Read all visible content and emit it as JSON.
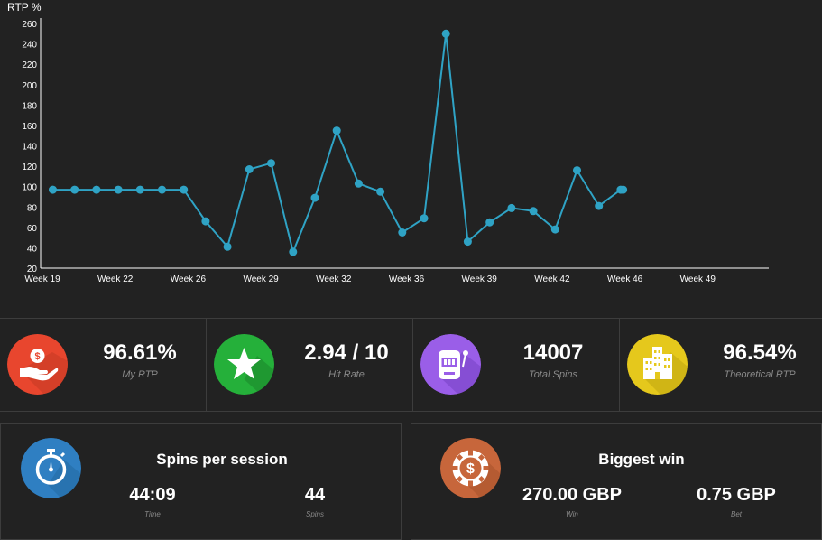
{
  "chart_data": {
    "type": "line",
    "ylabel": "RTP %",
    "ylim": [
      20,
      260
    ],
    "yticks": [
      20,
      40,
      60,
      80,
      100,
      120,
      140,
      160,
      180,
      200,
      220,
      240,
      260
    ],
    "xlim": [
      19,
      49
    ],
    "xticks": [
      {
        "value": 19,
        "label": "Week 19"
      },
      {
        "value": 22,
        "label": "Week 22"
      },
      {
        "value": 25,
        "label": "Week 26"
      },
      {
        "value": 28,
        "label": "Week 29"
      },
      {
        "value": 31,
        "label": "Week 32"
      },
      {
        "value": 34,
        "label": "Week 36"
      },
      {
        "value": 37,
        "label": "Week 39"
      },
      {
        "value": 40,
        "label": "Week 42"
      },
      {
        "value": 43,
        "label": "Week 46"
      },
      {
        "value": 46,
        "label": "Week 49"
      }
    ],
    "color": "#2fa3c5",
    "grid": false,
    "series": [
      {
        "x": [
          19.5,
          20.4,
          21.3,
          22.2,
          23.1,
          24.0,
          24.9,
          25.8,
          26.7,
          27.6,
          28.5,
          29.4,
          30.3,
          31.2,
          32.1,
          33.0,
          33.9,
          34.8,
          35.7,
          36.6,
          37.5,
          38.4,
          39.3,
          40.2,
          41.1,
          42.0,
          42.9,
          43.0
        ],
        "y": [
          97,
          97,
          97,
          97,
          97,
          97,
          97,
          66,
          41,
          117,
          123,
          36,
          89,
          155,
          103,
          95,
          55,
          69,
          250,
          46,
          65,
          79,
          76,
          58,
          116,
          81,
          97,
          97
        ]
      }
    ]
  },
  "stats": [
    {
      "value": "96.61%",
      "label": "My RTP",
      "icon": "hand-money-icon",
      "color": "#e8462e"
    },
    {
      "value": "2.94 / 10",
      "label": "Hit Rate",
      "icon": "star-icon",
      "color": "#25b03a"
    },
    {
      "value": "14007",
      "label": "Total Spins",
      "icon": "slot-machine-icon",
      "color": "#9a5ee8"
    },
    {
      "value": "96.54%",
      "label": "Theoretical RTP",
      "icon": "building-icon",
      "color": "#e5c81c"
    }
  ],
  "sessions": {
    "title": "Spins per session",
    "icon": "stopwatch-icon",
    "color": "#2f7fc2",
    "time_value": "44:09",
    "time_label": "Time",
    "spins_value": "44",
    "spins_label": "Spins"
  },
  "biggest_win": {
    "title": "Biggest win",
    "icon": "casino-chip-icon",
    "color": "#c7663b",
    "win_value": "270.00 GBP",
    "win_label": "Win",
    "bet_value": "0.75 GBP",
    "bet_label": "Bet"
  }
}
